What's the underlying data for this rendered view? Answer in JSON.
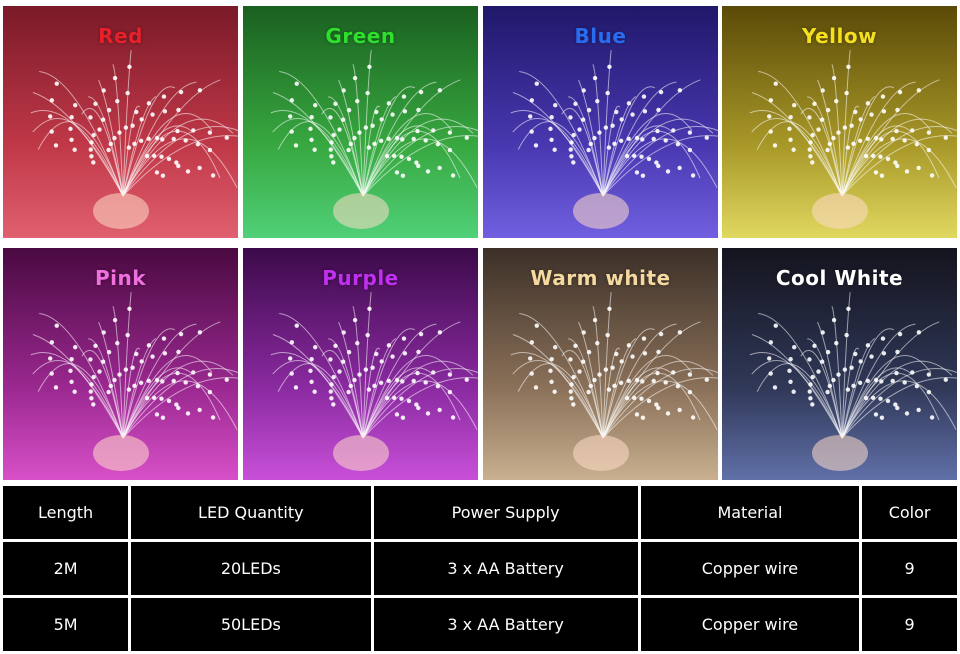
{
  "tiles": [
    {
      "label": "Red"
    },
    {
      "label": "Green"
    },
    {
      "label": "Blue"
    },
    {
      "label": "Yellow"
    },
    {
      "label": "Pink"
    },
    {
      "label": "Purple"
    },
    {
      "label": "Warm white"
    },
    {
      "label": "Cool White"
    }
  ],
  "table": {
    "header": [
      "Length",
      "LED Quantity",
      "Power Supply",
      "Material",
      "Color"
    ],
    "rows": [
      [
        "2M",
        "20LEDs",
        "3 x AA Battery",
        "Copper wire",
        "9"
      ],
      [
        "5M",
        "50LEDs",
        "3 x AA Battery",
        "Copper wire",
        "9"
      ]
    ]
  }
}
